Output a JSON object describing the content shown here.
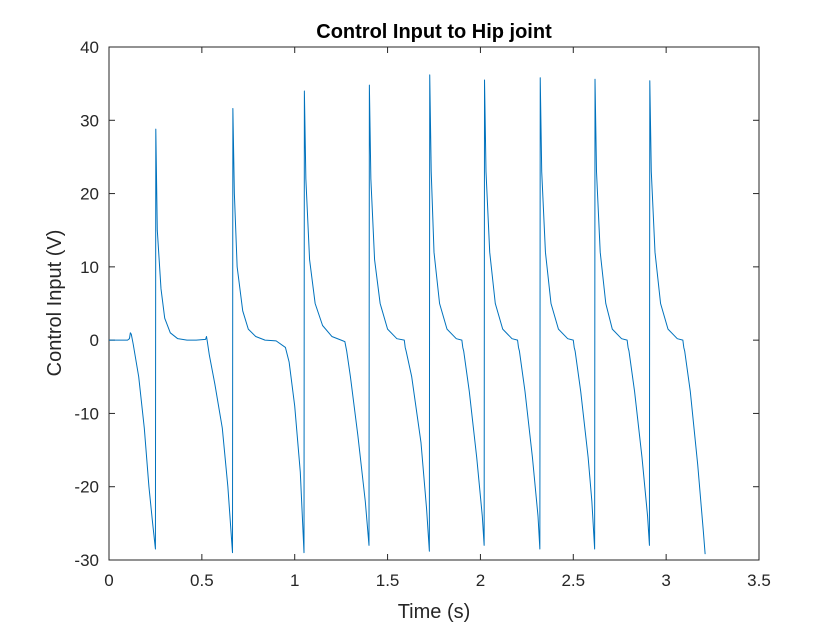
{
  "chart_data": {
    "type": "line",
    "title": "Control Input to Hip joint",
    "xlabel": "Time (s)",
    "ylabel": "Control Input (V)",
    "xlim": [
      0,
      3.5
    ],
    "ylim": [
      -30,
      40
    ],
    "xticks": [
      0,
      0.5,
      1,
      1.5,
      2,
      2.5,
      3,
      3.5
    ],
    "yticks": [
      -30,
      -20,
      -10,
      0,
      10,
      20,
      30,
      40
    ],
    "xtick_labels": [
      "0",
      "0.5",
      "1",
      "1.5",
      "2",
      "2.5",
      "3",
      "3.5"
    ],
    "ytick_labels": [
      "-30",
      "-20",
      "-10",
      "0",
      "10",
      "20",
      "30",
      "40"
    ],
    "grid": false,
    "line_color": "#0072BD",
    "series": [
      {
        "values_note_free": true,
        "x": [
          0,
          0.1,
          0.11,
          0.115,
          0.12,
          0.13,
          0.16,
          0.19,
          0.215,
          0.235,
          0.25,
          0.252,
          0.26,
          0.28,
          0.3,
          0.33,
          0.37,
          0.42,
          0.47,
          0.52,
          0.525,
          0.53,
          0.54,
          0.57,
          0.61,
          0.64,
          0.665,
          0.667,
          0.675,
          0.69,
          0.72,
          0.75,
          0.79,
          0.84,
          0.9,
          0.95,
          0.97,
          1.0,
          1.03,
          1.05,
          1.052,
          1.06,
          1.08,
          1.11,
          1.15,
          1.2,
          1.25,
          1.27,
          1.28,
          1.3,
          1.34,
          1.38,
          1.4,
          1.402,
          1.41,
          1.43,
          1.46,
          1.5,
          1.55,
          1.59,
          1.595,
          1.6,
          1.63,
          1.68,
          1.71,
          1.725,
          1.727,
          1.735,
          1.75,
          1.78,
          1.82,
          1.87,
          1.9,
          1.905,
          1.91,
          1.94,
          1.98,
          2.01,
          2.02,
          2.022,
          2.03,
          2.05,
          2.08,
          2.12,
          2.17,
          2.2,
          2.205,
          2.21,
          2.24,
          2.28,
          2.31,
          2.32,
          2.322,
          2.33,
          2.35,
          2.38,
          2.42,
          2.47,
          2.5,
          2.505,
          2.51,
          2.54,
          2.58,
          2.6,
          2.615,
          2.617,
          2.625,
          2.645,
          2.675,
          2.71,
          2.76,
          2.79,
          2.795,
          2.8,
          2.83,
          2.87,
          2.9,
          2.91,
          2.912,
          2.92,
          2.94,
          2.97,
          3.01,
          3.06,
          3.09,
          3.095,
          3.1,
          3.13,
          3.17,
          3.2,
          3.21
        ],
        "y": [
          0,
          0,
          0.2,
          1,
          0.8,
          -0.5,
          -5,
          -12,
          -20,
          -25,
          -28.5,
          28.8,
          15,
          7,
          3,
          1,
          0.2,
          0,
          0,
          0.1,
          0.5,
          -0.3,
          -2,
          -6,
          -12,
          -20,
          -29,
          31.6,
          20,
          10,
          4,
          1.5,
          0.5,
          0,
          -0.1,
          -1,
          -3,
          -9,
          -18,
          -29,
          34,
          22,
          11,
          5,
          2,
          0.5,
          0,
          -0.2,
          -1.5,
          -5,
          -13,
          -22,
          -28,
          34.8,
          22,
          11,
          5,
          1.5,
          0.2,
          0,
          -1,
          -1.5,
          -5,
          -14,
          -23,
          -28.8,
          36.2,
          23,
          12,
          5,
          1.5,
          0.2,
          0,
          -1,
          -1.5,
          -7,
          -16,
          -24,
          -28,
          35.5,
          23,
          12,
          5,
          1.5,
          0.2,
          0,
          -1,
          -1.5,
          -7,
          -16,
          -24,
          -28.5,
          35.8,
          23,
          12,
          5,
          1.5,
          0.2,
          0,
          -1,
          -1.5,
          -7,
          -16,
          -22,
          -28.5,
          35.6,
          23,
          12,
          5,
          1.5,
          0.2,
          0,
          -1,
          -1.5,
          -7,
          -16,
          -24,
          -28,
          35.4,
          23,
          12,
          5,
          1.5,
          0.2,
          0,
          -1,
          -1.5,
          -7,
          -17,
          -26,
          -29.2
        ]
      }
    ]
  }
}
